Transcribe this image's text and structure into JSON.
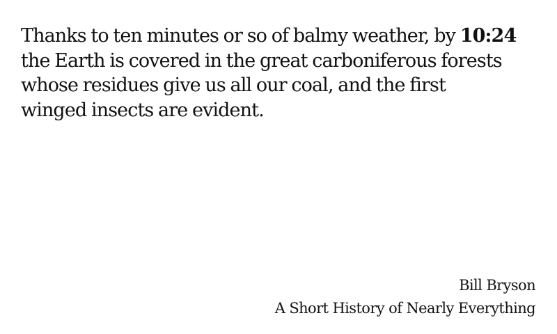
{
  "quote": {
    "text_before": "Thanks to ten minutes or so of balmy weather, by ",
    "time": "10:24",
    "text_after": "\n the Earth is covered in the great carboniferous forests\nwhose residues give us all our coal, and the first\nwinged insects are evident."
  },
  "attribution": {
    "author": "Bill Bryson",
    "book": "A Short History of Nearly Everything"
  }
}
